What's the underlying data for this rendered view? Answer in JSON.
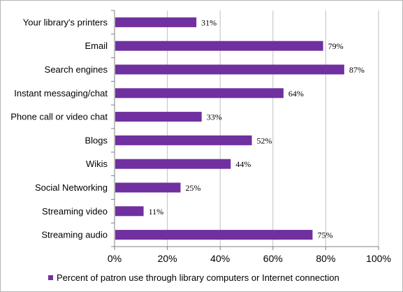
{
  "chart_data": {
    "type": "bar",
    "orientation": "horizontal",
    "categories": [
      "Your library's printers",
      "Email",
      "Search engines",
      "Instant messaging/chat",
      "Phone call or video chat",
      "Blogs",
      "Wikis",
      "Social Networking",
      "Streaming video",
      "Streaming audio"
    ],
    "series": [
      {
        "name": "Percent of patron use through library computers or Internet connection",
        "values": [
          31,
          79,
          87,
          64,
          33,
          52,
          44,
          25,
          11,
          75
        ],
        "data_labels": [
          "31%",
          "79%",
          "87%",
          "64%",
          "33%",
          "52%",
          "44%",
          "25%",
          "11%",
          "75%"
        ],
        "color": "#7030a0"
      }
    ],
    "xlim": [
      0,
      100
    ],
    "x_ticks": [
      0,
      20,
      40,
      60,
      80,
      100
    ],
    "x_tick_labels": [
      "0%",
      "20%",
      "40%",
      "60%",
      "80%",
      "100%"
    ],
    "grid": "vertical",
    "grid_color": "#c0c0c0",
    "legend_position": "bottom",
    "legend_label": "Percent of patron use through library computers or Internet connection"
  }
}
